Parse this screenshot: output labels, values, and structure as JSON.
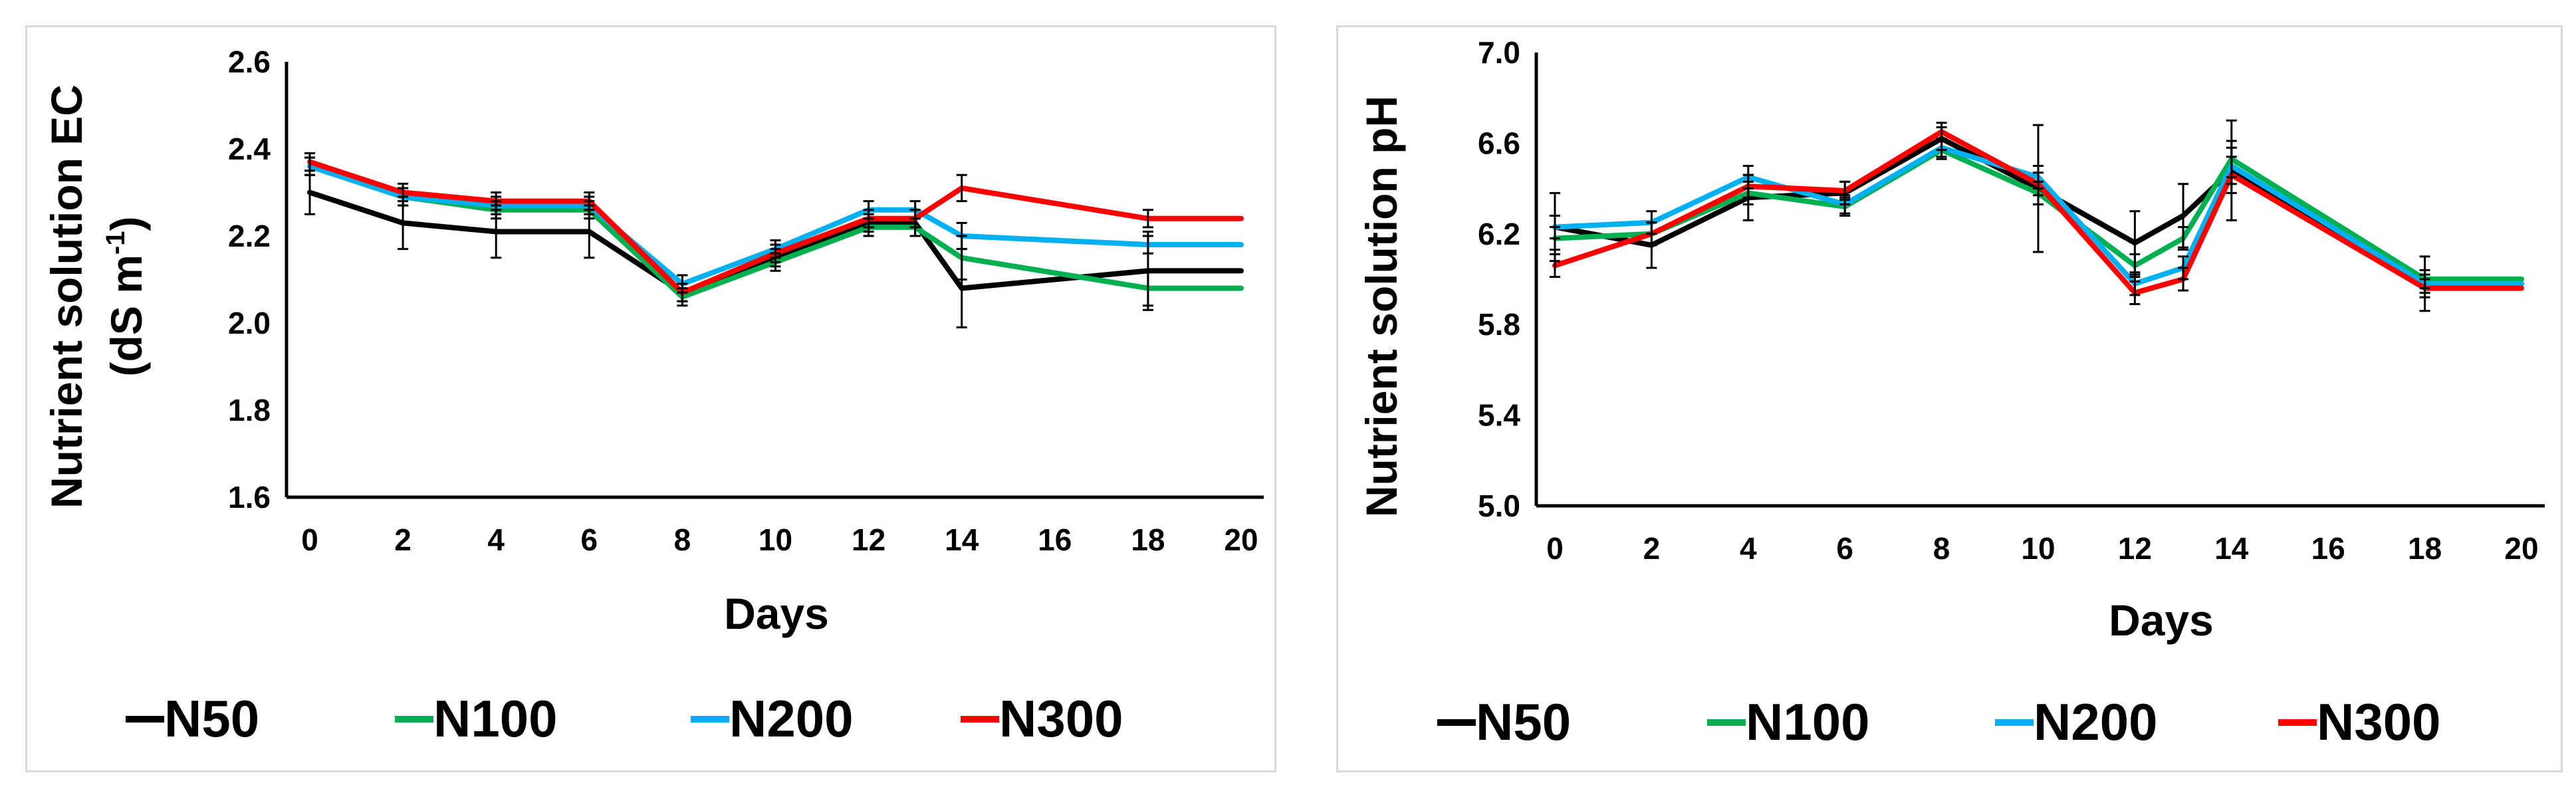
{
  "chart_data": [
    {
      "type": "line",
      "xlabel": "Days",
      "ylabel_line1": "Nutrient solution EC",
      "ylabel_line2_prefix": "(dS m",
      "ylabel_line2_sup": "-1",
      "ylabel_line2_suffix": ")",
      "ylim": [
        1.6,
        2.6
      ],
      "yticks": [
        "1.6",
        "1.8",
        "2.0",
        "2.2",
        "2.4",
        "2.6"
      ],
      "xticks": [
        "0",
        "2",
        "4",
        "6",
        "8",
        "10",
        "12",
        "14",
        "16",
        "18",
        "20"
      ],
      "x": [
        0,
        2,
        4,
        6,
        8,
        10,
        12,
        13,
        14,
        18,
        20
      ],
      "series": [
        {
          "name": "N50",
          "color": "#000000",
          "values": [
            2.3,
            2.23,
            2.21,
            2.21,
            2.07,
            2.15,
            2.23,
            2.23,
            2.08,
            2.12,
            2.12
          ],
          "err": [
            0.05,
            0.06,
            0.06,
            0.06,
            0.02,
            0.02,
            0.02,
            0.03,
            0.09,
            0.09,
            0
          ]
        },
        {
          "name": "N100",
          "color": "#00B050",
          "values": [
            2.36,
            2.29,
            2.26,
            2.26,
            2.06,
            2.14,
            2.22,
            2.22,
            2.15,
            2.08,
            2.08
          ],
          "err": [
            0.02,
            0.02,
            0.02,
            0.02,
            0.02,
            0.02,
            0.02,
            0.02,
            0.05,
            0.04,
            0
          ]
        },
        {
          "name": "N200",
          "color": "#00B0F0",
          "values": [
            2.36,
            2.29,
            2.27,
            2.27,
            2.09,
            2.17,
            2.26,
            2.26,
            2.2,
            2.18,
            2.18
          ],
          "err": [
            0.02,
            0.02,
            0.02,
            0.02,
            0.02,
            0.02,
            0.02,
            0.02,
            0.03,
            0.02,
            0
          ]
        },
        {
          "name": "N300",
          "color": "#FF0000",
          "values": [
            2.37,
            2.3,
            2.28,
            2.28,
            2.07,
            2.16,
            2.24,
            2.24,
            2.31,
            2.24,
            2.24
          ],
          "err": [
            0.02,
            0.02,
            0.02,
            0.02,
            0.02,
            0.02,
            0.02,
            0.02,
            0.03,
            0.02,
            0
          ]
        }
      ],
      "legend": [
        "N50",
        "N100",
        "N200",
        "N300"
      ]
    },
    {
      "type": "line",
      "xlabel": "Days",
      "ylabel": "Nutrient solution pH",
      "ylim": [
        5.0,
        7.0
      ],
      "yticks": [
        "5.0",
        "5.4",
        "5.8",
        "6.2",
        "6.6",
        "7.0"
      ],
      "xticks": [
        "0",
        "2",
        "4",
        "6",
        "8",
        "10",
        "12",
        "14",
        "16",
        "18",
        "20"
      ],
      "x": [
        0,
        2,
        4,
        6,
        8,
        10,
        12,
        13,
        14,
        18,
        20
      ],
      "series": [
        {
          "name": "N50",
          "color": "#000000",
          "values": [
            6.23,
            6.15,
            6.36,
            6.38,
            6.62,
            6.4,
            6.16,
            6.28,
            6.48,
            5.98,
            5.98
          ],
          "err": [
            0.15,
            0.1,
            0.1,
            0.05,
            0.05,
            0.28,
            0.14,
            0.14,
            0.22,
            0.12,
            0
          ]
        },
        {
          "name": "N100",
          "color": "#00B050",
          "values": [
            6.18,
            6.2,
            6.38,
            6.32,
            6.57,
            6.38,
            6.06,
            6.18,
            6.53,
            6.0,
            6.0
          ],
          "err": [
            0.05,
            0.05,
            0.05,
            0.04,
            0.04,
            0.05,
            0.05,
            0.05,
            0.08,
            0.04,
            0
          ]
        },
        {
          "name": "N200",
          "color": "#00B0F0",
          "values": [
            6.23,
            6.25,
            6.45,
            6.33,
            6.58,
            6.45,
            5.98,
            6.05,
            6.5,
            5.98,
            5.98
          ],
          "err": [
            0.05,
            0.05,
            0.05,
            0.04,
            0.04,
            0.05,
            0.05,
            0.05,
            0.08,
            0.04,
            0
          ]
        },
        {
          "name": "N300",
          "color": "#FF0000",
          "values": [
            6.06,
            6.2,
            6.41,
            6.39,
            6.65,
            6.42,
            5.94,
            6.0,
            6.46,
            5.96,
            5.96
          ],
          "err": [
            0.05,
            0.05,
            0.05,
            0.04,
            0.04,
            0.05,
            0.05,
            0.05,
            0.08,
            0.04,
            0
          ]
        }
      ],
      "legend": [
        "N50",
        "N100",
        "N200",
        "N300"
      ]
    }
  ]
}
